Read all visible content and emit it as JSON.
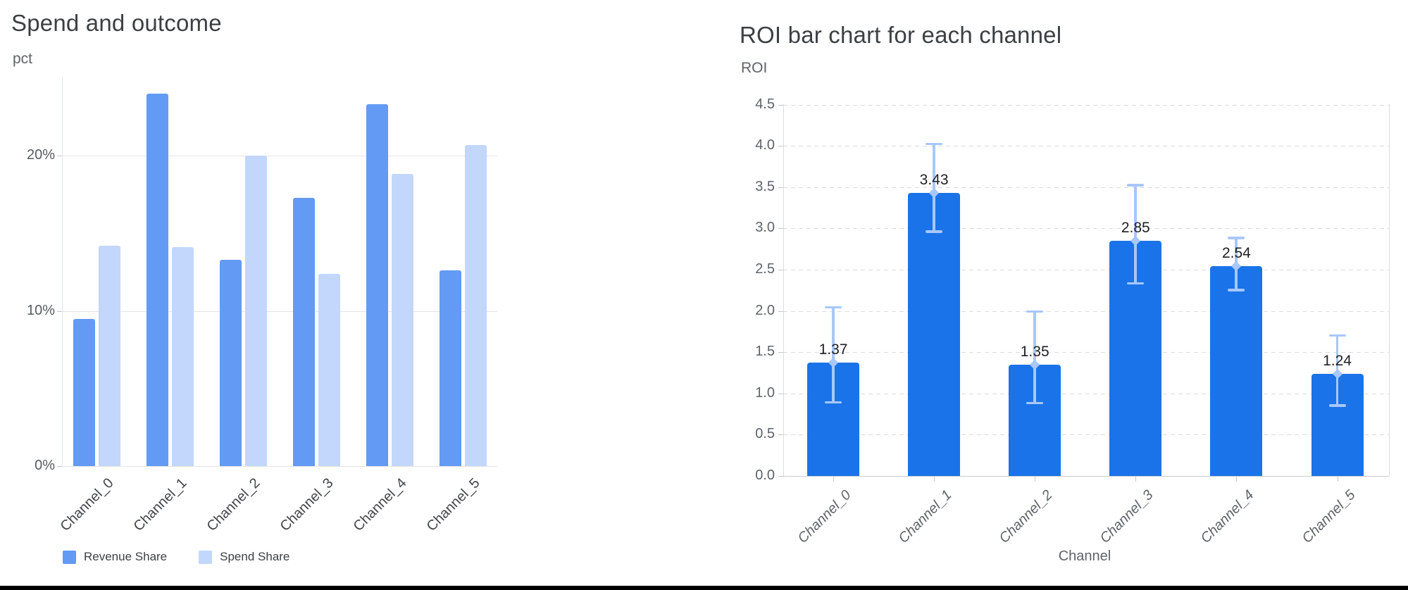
{
  "page": {
    "background": "#ffffff",
    "footer_bar_color": "#000000"
  },
  "chart_data": [
    {
      "type": "bar",
      "title": "Spend and outcome",
      "ylabel": "pct",
      "categories": [
        "Channel_0",
        "Channel_1",
        "Channel_2",
        "Channel_3",
        "Channel_4",
        "Channel_5"
      ],
      "series": [
        {
          "name": "Revenue Share",
          "color": "#639af4",
          "values": [
            9.5,
            24.0,
            13.3,
            17.3,
            23.3,
            12.6
          ]
        },
        {
          "name": "Spend Share",
          "color": "#c2d7fb",
          "values": [
            14.2,
            14.1,
            20.0,
            12.4,
            18.8,
            20.7
          ]
        }
      ],
      "ytick_values": [
        0,
        10,
        20
      ],
      "ytick_labels": [
        "0%",
        "10%",
        "20%"
      ],
      "ylim": [
        0,
        25
      ],
      "grid": "solid",
      "legend_position": "bottom"
    },
    {
      "type": "bar",
      "title": "ROI bar chart for each channel",
      "xlabel": "Channel",
      "ylabel": "ROI",
      "categories": [
        "Channel_0",
        "Channel_1",
        "Channel_2",
        "Channel_3",
        "Channel_4",
        "Channel_5"
      ],
      "values": [
        1.37,
        3.43,
        1.35,
        2.85,
        2.54,
        1.24
      ],
      "data_labels": [
        "1.37",
        "3.43",
        "1.35",
        "2.85",
        "2.54",
        "1.24"
      ],
      "error_low": [
        0.89,
        2.96,
        0.88,
        2.33,
        2.25,
        0.85
      ],
      "error_high": [
        2.05,
        4.03,
        2.0,
        3.53,
        2.89,
        1.71
      ],
      "ytick_values": [
        0.0,
        0.5,
        1.0,
        1.5,
        2.0,
        2.5,
        3.0,
        3.5,
        4.0,
        4.5
      ],
      "ylim": [
        0,
        4.5
      ],
      "grid": "dashed",
      "bar_color": "#1a73e8",
      "error_color": "#a8c7fa"
    }
  ]
}
